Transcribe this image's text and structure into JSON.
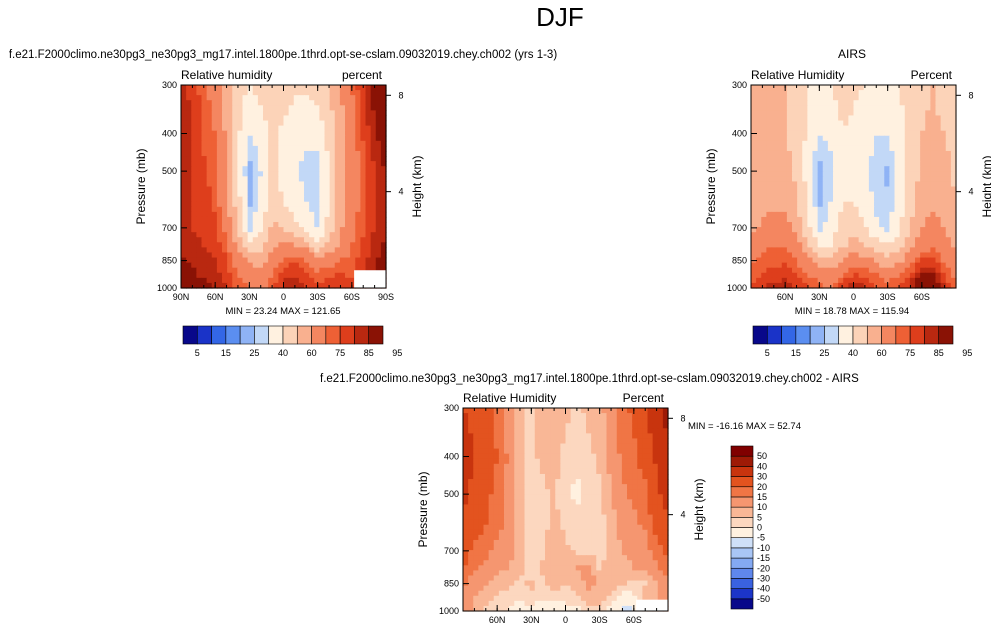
{
  "figure": {
    "title": "DJF"
  },
  "colors": {
    "rh_palette": [
      "#08088a",
      "#1a33c8",
      "#3366e6",
      "#5b8ef0",
      "#8fb3f5",
      "#c2d8f7",
      "#fff1e0",
      "#fcd3b8",
      "#f9b08f",
      "#f48660",
      "#ee6035",
      "#de3e1c",
      "#b92810",
      "#8a1205"
    ],
    "diff_palette": [
      "#08088a",
      "#1c35c8",
      "#3a62e0",
      "#5f87ec",
      "#84a9f2",
      "#a9c6f6",
      "#cfe0f8",
      "#fff1e0",
      "#fcd7bf",
      "#f9b796",
      "#f59670",
      "#f07545",
      "#e3531f",
      "#c8340e",
      "#9e1a06",
      "#800000"
    ],
    "missing": "#ffffff"
  },
  "chart_data": [
    {
      "id": "model",
      "type": "heatmap",
      "title": "f.e21.F2000climo.ne30pg3_ne30pg3_mg17.intel.1800pe.1thrd.opt-se-cslam.09032019.chey.ch002 (yrs 1-3)",
      "left_string": "Relative humidity",
      "right_string": "percent",
      "ylabel": "Pressure (mb)",
      "ylabel_right": "Height (km)",
      "xlim": [
        90,
        -90
      ],
      "ylim": [
        1000,
        300
      ],
      "x_ticks": [
        {
          "v": 90,
          "label": "90N"
        },
        {
          "v": 60,
          "label": "60N"
        },
        {
          "v": 30,
          "label": "30N"
        },
        {
          "v": 0,
          "label": "0"
        },
        {
          "v": -30,
          "label": "30S"
        },
        {
          "v": -60,
          "label": "60S"
        },
        {
          "v": -90,
          "label": "90S"
        }
      ],
      "y_ticks": [
        {
          "v": 300,
          "label": "300"
        },
        {
          "v": 400,
          "label": "400"
        },
        {
          "v": 500,
          "label": "500"
        },
        {
          "v": 700,
          "label": "700"
        },
        {
          "v": 850,
          "label": "850"
        },
        {
          "v": 1000,
          "label": "1000"
        }
      ],
      "height_ticks": [
        {
          "v": 8,
          "label": "8"
        },
        {
          "v": 4,
          "label": "4"
        }
      ],
      "lat_grid": [
        90,
        80,
        70,
        60,
        50,
        40,
        30,
        20,
        10,
        0,
        -10,
        -20,
        -30,
        -40,
        -50,
        -60,
        -70,
        -80,
        -90
      ],
      "lev_grid": [
        1000,
        925,
        850,
        775,
        700,
        600,
        500,
        400,
        300
      ],
      "missing_region": {
        "lat": [
          -62,
          -90
        ],
        "p": [
          1000,
          900
        ]
      },
      "values": [
        [
          92,
          90,
          88,
          85,
          80,
          72,
          70,
          66,
          74,
          82,
          84,
          80,
          76,
          78,
          80,
          76,
          82,
          88,
          92
        ],
        [
          88,
          86,
          84,
          82,
          78,
          70,
          66,
          62,
          70,
          78,
          80,
          76,
          72,
          74,
          76,
          74,
          80,
          86,
          90
        ],
        [
          86,
          84,
          82,
          80,
          76,
          66,
          58,
          56,
          64,
          72,
          74,
          70,
          64,
          66,
          70,
          72,
          78,
          84,
          88
        ],
        [
          84,
          82,
          80,
          78,
          72,
          58,
          40,
          46,
          56,
          62,
          60,
          56,
          42,
          52,
          62,
          70,
          76,
          82,
          86
        ],
        [
          82,
          80,
          78,
          76,
          68,
          50,
          28,
          38,
          52,
          50,
          42,
          36,
          28,
          44,
          58,
          68,
          74,
          80,
          84
        ],
        [
          82,
          80,
          78,
          74,
          62,
          44,
          24,
          32,
          46,
          40,
          34,
          30,
          26,
          40,
          56,
          66,
          72,
          80,
          84
        ],
        [
          82,
          80,
          76,
          72,
          60,
          42,
          22,
          30,
          42,
          36,
          30,
          28,
          26,
          40,
          56,
          64,
          72,
          80,
          86
        ],
        [
          84,
          80,
          74,
          70,
          58,
          42,
          30,
          34,
          42,
          38,
          34,
          32,
          34,
          44,
          56,
          66,
          76,
          84,
          90
        ],
        [
          82,
          78,
          72,
          66,
          56,
          44,
          40,
          44,
          50,
          46,
          42,
          42,
          44,
          50,
          60,
          70,
          80,
          88,
          92
        ]
      ],
      "min_label": "MIN = 23.24",
      "max_label": "MAX = 121.65",
      "colorbar": {
        "levels": [
          5,
          10,
          15,
          20,
          25,
          30,
          40,
          50,
          60,
          70,
          75,
          80,
          85,
          90,
          95
        ],
        "labels": [
          "5",
          "15",
          "25",
          "40",
          "60",
          "75",
          "85",
          "95"
        ]
      }
    },
    {
      "id": "airs",
      "type": "heatmap",
      "title": "AIRS",
      "left_string": "Relative Humidity",
      "right_string": "Percent",
      "ylabel": "Pressure (mb)",
      "ylabel_right": "Height (km)",
      "xlim": [
        90,
        -90
      ],
      "ylim": [
        1000,
        300
      ],
      "x_ticks": [
        {
          "v": 60,
          "label": "60N"
        },
        {
          "v": 30,
          "label": "30N"
        },
        {
          "v": 0,
          "label": "0"
        },
        {
          "v": -30,
          "label": "30S"
        },
        {
          "v": -60,
          "label": "60S"
        }
      ],
      "y_ticks": [
        {
          "v": 300,
          "label": "300"
        },
        {
          "v": 400,
          "label": "400"
        },
        {
          "v": 500,
          "label": "500"
        },
        {
          "v": 700,
          "label": "700"
        },
        {
          "v": 850,
          "label": "850"
        },
        {
          "v": 1000,
          "label": "1000"
        }
      ],
      "height_ticks": [
        {
          "v": 8,
          "label": "8"
        },
        {
          "v": 4,
          "label": "4"
        }
      ],
      "lat_grid": [
        90,
        80,
        70,
        60,
        50,
        40,
        30,
        20,
        10,
        0,
        -10,
        -20,
        -30,
        -40,
        -50,
        -60,
        -70,
        -80,
        -90
      ],
      "lev_grid": [
        1000,
        925,
        850,
        775,
        700,
        600,
        500,
        400,
        300
      ],
      "missing_region": null,
      "values": [
        [
          76,
          80,
          82,
          84,
          80,
          76,
          72,
          70,
          78,
          84,
          80,
          76,
          72,
          76,
          82,
          96,
          94,
          80,
          72
        ],
        [
          72,
          76,
          76,
          78,
          76,
          70,
          66,
          64,
          70,
          76,
          74,
          70,
          66,
          70,
          76,
          88,
          86,
          74,
          68
        ],
        [
          68,
          72,
          74,
          74,
          70,
          62,
          54,
          52,
          58,
          66,
          64,
          58,
          54,
          58,
          66,
          76,
          76,
          68,
          62
        ],
        [
          64,
          68,
          70,
          70,
          64,
          52,
          40,
          40,
          48,
          54,
          50,
          44,
          40,
          46,
          56,
          66,
          68,
          64,
          58
        ],
        [
          58,
          62,
          64,
          64,
          56,
          42,
          28,
          34,
          44,
          46,
          40,
          32,
          28,
          38,
          50,
          60,
          64,
          60,
          54
        ],
        [
          52,
          56,
          58,
          58,
          50,
          38,
          24,
          30,
          40,
          40,
          34,
          28,
          26,
          34,
          46,
          56,
          58,
          54,
          50
        ],
        [
          50,
          52,
          54,
          54,
          48,
          36,
          22,
          28,
          38,
          36,
          32,
          26,
          24,
          32,
          44,
          52,
          56,
          52,
          48
        ],
        [
          50,
          52,
          52,
          50,
          46,
          38,
          30,
          32,
          40,
          38,
          34,
          30,
          30,
          36,
          44,
          50,
          52,
          50,
          48
        ],
        [
          52,
          52,
          52,
          50,
          46,
          40,
          38,
          40,
          44,
          42,
          40,
          38,
          38,
          40,
          44,
          48,
          50,
          46,
          44
        ]
      ],
      "min_label": "MIN = 18.78",
      "max_label": "MAX = 115.94",
      "colorbar": {
        "levels": [
          5,
          10,
          15,
          20,
          25,
          30,
          40,
          50,
          60,
          70,
          75,
          80,
          85,
          90,
          95
        ],
        "labels": [
          "5",
          "15",
          "25",
          "40",
          "60",
          "75",
          "85",
          "95"
        ]
      }
    },
    {
      "id": "diff",
      "type": "heatmap",
      "title": "f.e21.F2000climo.ne30pg3_ne30pg3_mg17.intel.1800pe.1thrd.opt-se-cslam.09032019.chey.ch002 - AIRS",
      "left_string": "Relative Humidity",
      "right_string": "Percent",
      "ylabel": "Pressure (mb)",
      "ylabel_right": "Height (km)",
      "xlim": [
        90,
        -90
      ],
      "ylim": [
        1000,
        300
      ],
      "x_ticks": [
        {
          "v": 60,
          "label": "60N"
        },
        {
          "v": 30,
          "label": "30N"
        },
        {
          "v": 0,
          "label": "0"
        },
        {
          "v": -30,
          "label": "30S"
        },
        {
          "v": -60,
          "label": "60S"
        }
      ],
      "y_ticks": [
        {
          "v": 300,
          "label": "300"
        },
        {
          "v": 400,
          "label": "400"
        },
        {
          "v": 500,
          "label": "500"
        },
        {
          "v": 700,
          "label": "700"
        },
        {
          "v": 850,
          "label": "850"
        },
        {
          "v": 1000,
          "label": "1000"
        }
      ],
      "height_ticks": [
        {
          "v": 8,
          "label": "8"
        },
        {
          "v": 4,
          "label": "4"
        }
      ],
      "lat_grid": [
        90,
        80,
        70,
        60,
        50,
        40,
        30,
        20,
        10,
        0,
        -10,
        -20,
        -30,
        -40,
        -50,
        -60,
        -70,
        -80,
        -90
      ],
      "lev_grid": [
        1000,
        925,
        850,
        775,
        700,
        600,
        500,
        400,
        300
      ],
      "missing_region": {
        "lat": [
          -62,
          -90
        ],
        "p": [
          1000,
          935
        ]
      },
      "values": [
        [
          14,
          8,
          4,
          2,
          0,
          -2,
          -4,
          -6,
          -4,
          -2,
          -2,
          4,
          4,
          -4,
          -6,
          -6,
          10,
          12,
          18
        ],
        [
          14,
          10,
          8,
          4,
          2,
          0,
          4,
          2,
          0,
          2,
          4,
          6,
          6,
          4,
          -4,
          -2,
          8,
          10,
          16
        ],
        [
          16,
          12,
          10,
          8,
          6,
          4,
          6,
          4,
          8,
          6,
          6,
          12,
          10,
          8,
          6,
          4,
          4,
          10,
          14
        ],
        [
          20,
          16,
          14,
          12,
          10,
          6,
          2,
          6,
          8,
          10,
          10,
          12,
          4,
          8,
          8,
          10,
          10,
          14,
          18
        ],
        [
          24,
          18,
          16,
          14,
          12,
          8,
          2,
          4,
          8,
          6,
          4,
          4,
          2,
          8,
          10,
          12,
          12,
          18,
          22
        ],
        [
          28,
          24,
          20,
          16,
          14,
          8,
          2,
          4,
          6,
          4,
          2,
          4,
          2,
          8,
          12,
          14,
          16,
          22,
          28
        ],
        [
          32,
          28,
          22,
          18,
          14,
          8,
          2,
          4,
          6,
          2,
          -2,
          2,
          4,
          10,
          14,
          16,
          18,
          28,
          34
        ],
        [
          34,
          30,
          24,
          20,
          14,
          6,
          4,
          6,
          6,
          4,
          2,
          4,
          6,
          12,
          16,
          18,
          24,
          32,
          38
        ],
        [
          30,
          28,
          22,
          18,
          12,
          6,
          4,
          6,
          8,
          6,
          4,
          6,
          8,
          14,
          18,
          22,
          30,
          38,
          44
        ]
      ],
      "min_label": "MIN = -16.16",
      "max_label": "MAX = 52.74",
      "colorbar": {
        "levels": [
          -50,
          -40,
          -30,
          -20,
          -15,
          -10,
          -5,
          0,
          5,
          10,
          15,
          20,
          30,
          40,
          50
        ],
        "labels": [
          "-50",
          "-40",
          "-30",
          "-20",
          "-15",
          "-10",
          "-5",
          "0",
          "5",
          "10",
          "15",
          "20",
          "30",
          "40",
          "50"
        ]
      }
    }
  ]
}
